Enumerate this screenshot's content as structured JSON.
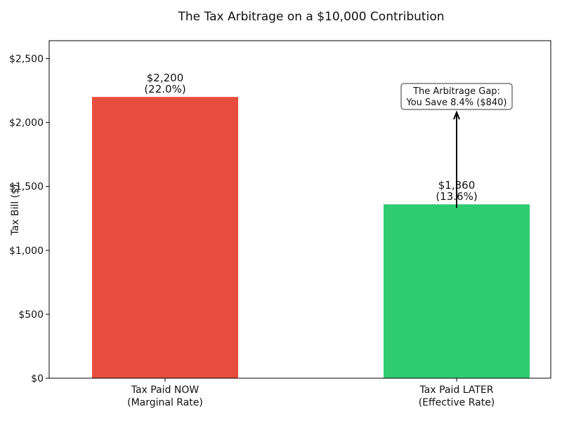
{
  "chart_data": {
    "type": "bar",
    "title": "The Tax Arbitrage on a $10,000 Contribution",
    "xlabel": "",
    "ylabel": "Tax Bill ($)",
    "categories": [
      "Tax Paid NOW\n(Marginal Rate)",
      "Tax Paid LATER\n(Effective Rate)"
    ],
    "values": [
      2200,
      1360
    ],
    "data_labels": [
      "$2,200\n(22.0%)",
      "$1,360\n(13.6%)"
    ],
    "colors": [
      "#e74c3c",
      "#2ecc71"
    ],
    "ylim": [
      0,
      2640
    ],
    "yticks": [
      0,
      500,
      1000,
      1500,
      2000,
      2500
    ],
    "ytick_labels": [
      "$0",
      "$500",
      "$1,000",
      "$1,500",
      "$2,000",
      "$2,500"
    ],
    "grid": false,
    "annotation": {
      "text": "The Arbitrage Gap:\nYou Save 8.4% ($840)",
      "arrow_from": 1360,
      "arrow_to": 2080,
      "category_index": 1
    }
  }
}
